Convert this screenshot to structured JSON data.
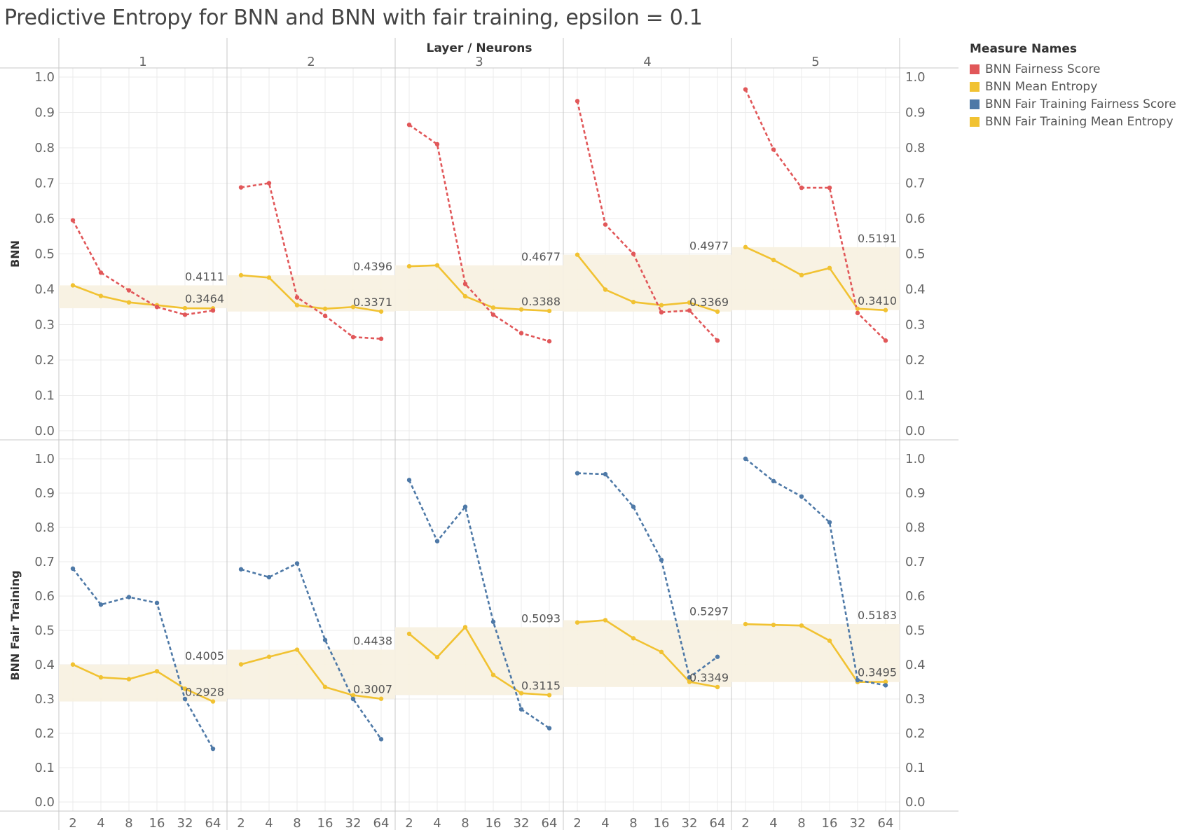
{
  "title": "Predictive Entropy for BNN and BNN with fair training, epsilon = 0.1",
  "header_label": "Layer  /  Neurons",
  "legend": {
    "title": "Measure Names",
    "items": [
      {
        "label": "BNN Fairness Score",
        "color": "#e15759"
      },
      {
        "label": "BNN Mean Entropy",
        "color": "#f1c232"
      },
      {
        "label": "BNN Fair Training Fairness Score",
        "color": "#4e79a7"
      },
      {
        "label": "BNN Fair Training Mean Entropy",
        "color": "#f1c232"
      }
    ]
  },
  "chart_data": {
    "type": "line",
    "title": "Predictive Entropy for BNN and BNN with fair training, epsilon = 0.1",
    "layers": [
      "1",
      "2",
      "3",
      "4",
      "5"
    ],
    "x": [
      "2",
      "4",
      "8",
      "16",
      "32",
      "64"
    ],
    "yticks": [
      "0.0",
      "0.1",
      "0.2",
      "0.3",
      "0.4",
      "0.5",
      "0.6",
      "0.7",
      "0.8",
      "0.9",
      "1.0"
    ],
    "ylim": [
      0,
      1
    ],
    "rows": [
      {
        "label": "BNN",
        "fairness_series_name": "BNN Fairness Score",
        "fairness_color": "#e15759",
        "entropy_series_name": "BNN Mean Entropy",
        "entropy_color": "#f1c232",
        "fairness": [
          [
            0.595,
            0.447,
            0.397,
            0.35,
            0.328,
            0.34
          ],
          [
            0.688,
            0.7,
            0.377,
            0.325,
            0.265,
            0.26
          ],
          [
            0.865,
            0.81,
            0.415,
            0.328,
            0.276,
            0.253
          ],
          [
            0.932,
            0.583,
            0.5,
            0.335,
            0.34,
            0.255
          ],
          [
            0.965,
            0.795,
            0.687,
            0.687,
            0.333,
            0.255
          ]
        ],
        "entropy": [
          [
            0.4111,
            0.381,
            0.363,
            0.355,
            0.3464,
            0.346
          ],
          [
            0.4396,
            0.433,
            0.355,
            0.345,
            0.35,
            0.3371
          ],
          [
            0.465,
            0.4677,
            0.38,
            0.348,
            0.343,
            0.3388
          ],
          [
            0.4977,
            0.399,
            0.364,
            0.355,
            0.3625,
            0.3369
          ],
          [
            0.5191,
            0.483,
            0.44,
            0.46,
            0.345,
            0.341
          ]
        ],
        "band_labels": [
          {
            "max": "0.4111",
            "min": "0.3464"
          },
          {
            "max": "0.4396",
            "min": "0.3371"
          },
          {
            "max": "0.4677",
            "min": "0.3388"
          },
          {
            "max": "0.4977",
            "min": "0.3369"
          },
          {
            "max": "0.5191",
            "min": "0.3410"
          }
        ]
      },
      {
        "label": "BNN Fair Training",
        "fairness_series_name": "BNN Fair Training Fairness Score",
        "fairness_color": "#4e79a7",
        "entropy_series_name": "BNN Fair Training Mean Entropy",
        "entropy_color": "#f1c232",
        "fairness": [
          [
            0.68,
            0.575,
            0.597,
            0.58,
            0.3,
            0.155
          ],
          [
            0.678,
            0.655,
            0.695,
            0.472,
            0.3,
            0.183
          ],
          [
            0.938,
            0.76,
            0.86,
            0.525,
            0.27,
            0.215
          ],
          [
            0.958,
            0.955,
            0.86,
            0.705,
            0.363,
            0.423
          ],
          [
            1.0,
            0.935,
            0.89,
            0.815,
            0.355,
            0.34
          ]
        ],
        "entropy": [
          [
            0.4005,
            0.363,
            0.358,
            0.381,
            0.33,
            0.2928
          ],
          [
            0.401,
            0.423,
            0.4438,
            0.335,
            0.311,
            0.3007
          ],
          [
            0.49,
            0.422,
            0.5093,
            0.37,
            0.317,
            0.3115
          ],
          [
            0.523,
            0.5297,
            0.477,
            0.437,
            0.35,
            0.3349
          ],
          [
            0.5183,
            0.516,
            0.514,
            0.47,
            0.3495,
            0.35
          ]
        ],
        "band_labels": [
          {
            "max": "0.4005",
            "min": "0.2928"
          },
          {
            "max": "0.4438",
            "min": "0.3007"
          },
          {
            "max": "0.5093",
            "min": "0.3115"
          },
          {
            "max": "0.5297",
            "min": "0.3349"
          },
          {
            "max": "0.5183",
            "min": "0.3495"
          }
        ]
      }
    ]
  }
}
